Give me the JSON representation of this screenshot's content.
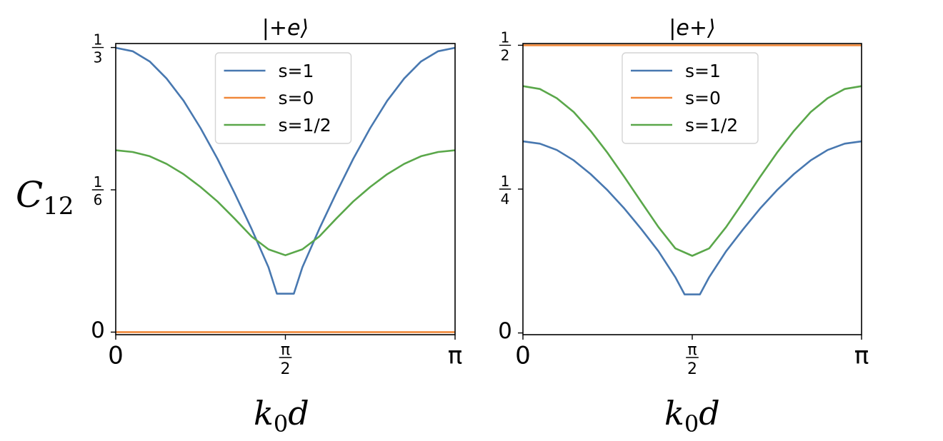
{
  "figure": {
    "ylabel": {
      "main": "C",
      "sub": "12"
    },
    "xlabel": {
      "main": "k",
      "sub": "0",
      "tail": "d"
    }
  },
  "chart_data": [
    {
      "type": "line",
      "title": "|+e⟩",
      "xlim": [
        0,
        3.14159
      ],
      "ylim": [
        -0.003,
        0.338
      ],
      "xticks": [
        {
          "value": 0,
          "label": "0"
        },
        {
          "value": 1.5708,
          "label": "π/2"
        },
        {
          "value": 3.14159,
          "label": "π"
        }
      ],
      "yticks": [
        {
          "value": 0,
          "label": "0"
        },
        {
          "value": 0.16667,
          "label": "1/6"
        },
        {
          "value": 0.33333,
          "label": "1/3"
        }
      ],
      "legend": {
        "placement": "upper-center"
      },
      "series": [
        {
          "name": "s=1",
          "color": "#4878b0",
          "x": [
            0,
            0.157,
            0.314,
            0.471,
            0.628,
            0.785,
            0.942,
            1.1,
            1.257,
            1.414,
            1.492,
            1.649,
            1.728,
            1.885,
            2.042,
            2.199,
            2.356,
            2.513,
            2.67,
            2.827,
            2.985,
            3.142
          ],
          "y": [
            0.333,
            0.329,
            0.317,
            0.297,
            0.271,
            0.239,
            0.203,
            0.163,
            0.121,
            0.076,
            0.045,
            0.045,
            0.076,
            0.121,
            0.163,
            0.203,
            0.239,
            0.271,
            0.297,
            0.317,
            0.329,
            0.333
          ]
        },
        {
          "name": "s=0",
          "color": "#f0883a",
          "x": [
            0,
            3.142
          ],
          "y": [
            0,
            0
          ]
        },
        {
          "name": "s=1/2",
          "color": "#5aa74a",
          "x": [
            0,
            0.157,
            0.314,
            0.471,
            0.628,
            0.785,
            0.942,
            1.1,
            1.257,
            1.414,
            1.571,
            1.728,
            1.885,
            2.042,
            2.199,
            2.356,
            2.513,
            2.67,
            2.827,
            2.985,
            3.142
          ],
          "y": [
            0.213,
            0.211,
            0.206,
            0.197,
            0.185,
            0.17,
            0.153,
            0.133,
            0.112,
            0.097,
            0.09,
            0.097,
            0.112,
            0.133,
            0.153,
            0.17,
            0.185,
            0.197,
            0.206,
            0.211,
            0.213
          ]
        }
      ]
    },
    {
      "type": "line",
      "title": "|e+⟩",
      "xlim": [
        0,
        3.14159
      ],
      "ylim": [
        -0.003,
        0.503
      ],
      "xticks": [
        {
          "value": 0,
          "label": "0"
        },
        {
          "value": 1.5708,
          "label": "π/2"
        },
        {
          "value": 3.14159,
          "label": "π"
        }
      ],
      "yticks": [
        {
          "value": 0,
          "label": "0"
        },
        {
          "value": 0.25,
          "label": "1/4"
        },
        {
          "value": 0.5,
          "label": "1/2"
        }
      ],
      "legend": {
        "placement": "upper-center"
      },
      "series": [
        {
          "name": "s=1",
          "color": "#4878b0",
          "x": [
            0,
            0.157,
            0.314,
            0.471,
            0.628,
            0.785,
            0.942,
            1.1,
            1.257,
            1.414,
            1.5,
            1.642,
            1.728,
            1.885,
            2.042,
            2.199,
            2.356,
            2.513,
            2.67,
            2.827,
            2.985,
            3.142
          ],
          "y": [
            0.333,
            0.329,
            0.318,
            0.3,
            0.276,
            0.248,
            0.216,
            0.18,
            0.142,
            0.097,
            0.067,
            0.067,
            0.097,
            0.142,
            0.18,
            0.216,
            0.248,
            0.276,
            0.3,
            0.318,
            0.329,
            0.333
          ]
        },
        {
          "name": "s=0",
          "color": "#f0883a",
          "x": [
            0,
            3.142
          ],
          "y": [
            0.5,
            0.5
          ]
        },
        {
          "name": "s=1/2",
          "color": "#5aa74a",
          "x": [
            0,
            0.157,
            0.314,
            0.471,
            0.628,
            0.785,
            0.942,
            1.1,
            1.257,
            1.414,
            1.571,
            1.728,
            1.885,
            2.042,
            2.199,
            2.356,
            2.513,
            2.67,
            2.827,
            2.985,
            3.142
          ],
          "y": [
            0.429,
            0.424,
            0.408,
            0.384,
            0.351,
            0.313,
            0.271,
            0.227,
            0.184,
            0.147,
            0.134,
            0.147,
            0.184,
            0.227,
            0.271,
            0.313,
            0.351,
            0.384,
            0.408,
            0.424,
            0.429
          ]
        }
      ]
    }
  ]
}
